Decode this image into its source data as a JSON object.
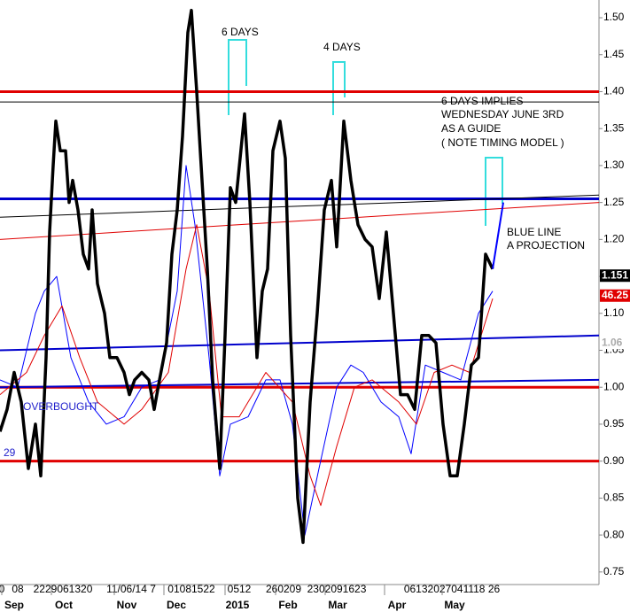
{
  "chart_data": {
    "type": "line",
    "xlim": [
      0,
      169
    ],
    "ylim": [
      0.733,
      1.524
    ],
    "yticks": [
      {
        "value": 1.5,
        "label": "1.50"
      },
      1.45,
      {
        "value": 1.4,
        "label": "1.40"
      },
      1.35,
      {
        "value": 1.3,
        "label": "1.30"
      },
      1.25,
      {
        "value": 1.2,
        "label": "1.20"
      },
      1.15,
      {
        "value": 1.1,
        "label": "1.10"
      },
      1.05,
      {
        "value": 1.0,
        "label": "1.00"
      },
      0.95,
      {
        "value": 0.9,
        "label": "0.90"
      },
      0.85,
      {
        "value": 0.8,
        "label": "0.80"
      },
      0.75
    ],
    "xticks": [
      {
        "value": 0.5,
        "label": "0"
      },
      {
        "value": 5,
        "label": "08"
      },
      {
        "value": 17.75,
        "label": "2229061320"
      },
      {
        "value": 37,
        "label": "11/06/14 7"
      },
      {
        "value": 54,
        "label": "01081522"
      },
      {
        "value": 67.5,
        "label": "0512"
      },
      {
        "value": 80,
        "label": "260209"
      },
      {
        "value": 95,
        "label": "2302091623"
      },
      {
        "value": 127.5,
        "label": "06132027041118 26"
      }
    ],
    "month_ticks": [
      {
        "value": 4,
        "label": "Sep"
      },
      {
        "value": 18,
        "label": "Oct"
      },
      {
        "value": 35.75,
        "label": "Nov"
      },
      {
        "value": 49.75,
        "label": "Dec"
      },
      {
        "value": 67,
        "label": "2015"
      },
      {
        "value": 81.25,
        "label": "Feb"
      },
      {
        "value": 95.25,
        "label": "Mar"
      },
      {
        "value": 112,
        "label": "Apr"
      },
      {
        "value": 128.25,
        "label": "May"
      }
    ],
    "hlines": [
      {
        "value": 1.4,
        "color": "#e00000",
        "width": 3
      },
      {
        "value": 1.386,
        "color": "#000000",
        "width": 1
      },
      {
        "value": 1.255,
        "color": "#0000cc",
        "width": 3
      },
      {
        "value": 1.0,
        "color": "#e00000",
        "width": 3
      },
      {
        "value": 0.9,
        "color": "#e00000",
        "width": 3
      }
    ],
    "trendlines": [
      {
        "values": [
          1.23,
          1.26
        ],
        "color": "#000000",
        "width": 1
      },
      {
        "values": [
          1.2,
          1.25
        ],
        "color": "#e00000",
        "width": 1
      },
      {
        "values": [
          1.05,
          1.07
        ],
        "color": "#0000cc",
        "width": 2
      },
      {
        "values": [
          1.0,
          1.01
        ],
        "color": "#0000cc",
        "width": 2
      }
    ],
    "series": [
      {
        "color": "#0000ff",
        "width": 1,
        "x": [
          0,
          5,
          10,
          12.5,
          16,
          20,
          25,
          30,
          35,
          40,
          45,
          50,
          52.5,
          55,
          59,
          62,
          65,
          70,
          75,
          79,
          82.5,
          86,
          90,
          95,
          99,
          102.5,
          107.5,
          112.5,
          116,
          120,
          125,
          130,
          135,
          139
        ],
        "values": [
          1.01,
          1.0,
          1.1,
          1.13,
          1.15,
          1.04,
          0.98,
          0.95,
          0.96,
          1.0,
          1.01,
          1.13,
          1.3,
          1.22,
          1.04,
          0.88,
          0.95,
          0.96,
          1.01,
          1.01,
          0.95,
          0.8,
          0.89,
          1.0,
          1.03,
          1.02,
          0.98,
          0.96,
          0.91,
          1.03,
          1.02,
          1.01,
          1.1,
          1.13
        ]
      },
      {
        "color": "#e00000",
        "width": 1,
        "x": [
          0,
          7.5,
          12.5,
          17.5,
          22.5,
          27.5,
          35,
          40,
          47.5,
          52.5,
          55.5,
          59,
          62.5,
          67.5,
          75,
          82.5,
          87.5,
          90.5,
          95,
          100,
          105,
          112.5,
          117.5,
          122.5,
          127.5,
          132.5,
          139
        ],
        "values": [
          0.99,
          1.02,
          1.07,
          1.11,
          1.04,
          0.98,
          0.95,
          0.97,
          1.02,
          1.16,
          1.22,
          1.13,
          0.96,
          0.96,
          1.02,
          0.98,
          0.88,
          0.84,
          0.92,
          1.0,
          1.01,
          0.98,
          0.95,
          1.02,
          1.03,
          1.02,
          1.12
        ]
      },
      {
        "color": "#000000",
        "width": 3.5,
        "x": [
          0,
          2,
          4,
          6,
          8,
          10,
          11.5,
          13,
          14,
          15,
          15.75,
          17,
          18.5,
          19.5,
          20.5,
          22,
          23.5,
          25,
          26,
          27.5,
          29.5,
          31,
          33,
          35,
          36.5,
          38,
          40,
          42,
          43.5,
          45,
          47,
          48.5,
          50,
          51.5,
          53,
          54,
          55.5,
          57,
          58.5,
          60,
          62,
          63.5,
          65,
          66.5,
          69,
          70.5,
          72.5,
          74,
          75.5,
          77,
          79,
          80.5,
          82,
          84,
          85.5,
          87.5,
          89.5,
          91.5,
          93.5,
          95,
          97,
          99,
          101,
          103,
          105,
          107,
          109,
          111,
          113,
          115,
          117,
          119,
          121,
          123,
          125,
          127,
          129,
          131,
          133,
          135,
          137,
          139
        ],
        "values": [
          0.94,
          0.97,
          1.02,
          0.98,
          0.89,
          0.95,
          0.88,
          1.04,
          1.21,
          1.3,
          1.36,
          1.32,
          1.32,
          1.25,
          1.28,
          1.24,
          1.18,
          1.16,
          1.24,
          1.14,
          1.1,
          1.04,
          1.04,
          1.02,
          0.99,
          1.01,
          1.02,
          1.01,
          0.97,
          1.01,
          1.06,
          1.18,
          1.24,
          1.34,
          1.48,
          1.51,
          1.4,
          1.28,
          1.16,
          1.01,
          0.89,
          1.07,
          1.27,
          1.25,
          1.37,
          1.25,
          1.04,
          1.13,
          1.16,
          1.32,
          1.36,
          1.31,
          1.07,
          0.85,
          0.79,
          0.98,
          1.1,
          1.24,
          1.28,
          1.19,
          1.36,
          1.28,
          1.22,
          1.2,
          1.19,
          1.12,
          1.21,
          1.1,
          0.99,
          0.99,
          0.97,
          1.07,
          1.07,
          1.06,
          0.95,
          0.88,
          0.88,
          0.95,
          1.03,
          1.04,
          1.18,
          1.16
        ]
      },
      {
        "color": "#0000ff",
        "width": 2,
        "x": [
          139,
          142
        ],
        "values": [
          1.16,
          1.25
        ]
      }
    ],
    "price_labels": [
      {
        "value": 1.151,
        "label": "1.151",
        "bg": "#000000",
        "fg": "#ffffff"
      },
      {
        "value": 1.124,
        "label": "46.25",
        "bg": "#e00000",
        "fg": "#ffffff"
      },
      {
        "value": 1.06,
        "label": "1.06",
        "bg": "#ffffff",
        "fg": "#aaaaaa"
      }
    ],
    "annotations": {
      "six_days": "6 DAYS",
      "four_days": "4 DAYS",
      "note": [
        "6 DAYS IMPLIES",
        "WEDNESDAY JUNE 3RD",
        "AS A GUIDE",
        "( NOTE TIMING MODEL )"
      ],
      "projection": [
        "BLUE LINE",
        "A PROJECTION"
      ],
      "overbought": "OVERBOUGHT",
      "left_value": "29"
    }
  }
}
